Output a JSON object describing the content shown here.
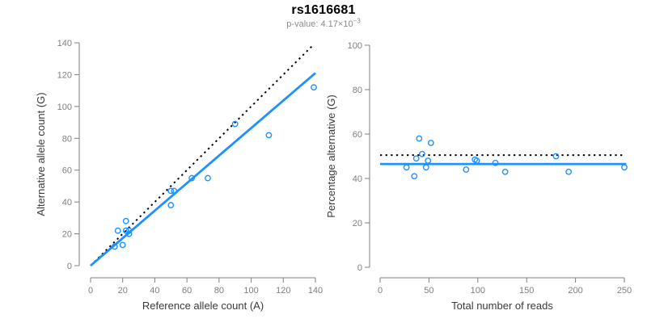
{
  "header": {
    "title": "rs1616681",
    "p_value": {
      "label": "p-value: 4.17×10",
      "exponent": "−3"
    }
  },
  "colors": {
    "points": "#1E90FF",
    "fit_line": "#1E90FF",
    "reference_line": "#000000",
    "axis": "#808080",
    "tick_label": "#7f7f7f",
    "axis_label": "#3a3a3a",
    "title": "#000000",
    "subtitle": "#8a8a8a",
    "background": "#ffffff"
  },
  "chart_data": [
    {
      "type": "scatter",
      "title": "",
      "xlabel": "Reference allele count (A)",
      "ylabel": "Alternative allele count (G)",
      "xlim": [
        0,
        140
      ],
      "ylim": [
        0,
        140
      ],
      "xticks": [
        0,
        20,
        40,
        60,
        80,
        100,
        120,
        140
      ],
      "yticks": [
        0,
        20,
        40,
        60,
        80,
        100,
        120,
        140
      ],
      "grid": false,
      "legend": "none",
      "points": [
        [
          15,
          12
        ],
        [
          17,
          22
        ],
        [
          20,
          13
        ],
        [
          22,
          28
        ],
        [
          22,
          22
        ],
        [
          24,
          22
        ],
        [
          24,
          20
        ],
        [
          50,
          38
        ],
        [
          50,
          47
        ],
        [
          52,
          47
        ],
        [
          63,
          55
        ],
        [
          73,
          55
        ],
        [
          90,
          89
        ],
        [
          111,
          82
        ],
        [
          139,
          112
        ]
      ],
      "lines": [
        {
          "name": "identity-line",
          "style": "dotted",
          "color": "#000000",
          "x": [
            0,
            138
          ],
          "y": [
            0,
            138
          ]
        },
        {
          "name": "regression-line",
          "style": "solid",
          "color": "#1E90FF",
          "x": [
            0,
            140
          ],
          "y": [
            0,
            121
          ]
        }
      ]
    },
    {
      "type": "scatter",
      "title": "",
      "xlabel": "Total number of reads",
      "ylabel": "Percentage alternative (G)",
      "xlim": [
        0,
        250
      ],
      "ylim": [
        0,
        100
      ],
      "xticks": [
        0,
        50,
        100,
        150,
        200,
        250
      ],
      "yticks": [
        0,
        20,
        40,
        60,
        80,
        100
      ],
      "grid": false,
      "legend": "none",
      "points": [
        [
          27,
          45
        ],
        [
          35,
          41
        ],
        [
          37,
          49
        ],
        [
          40,
          58
        ],
        [
          43,
          51
        ],
        [
          47,
          45
        ],
        [
          49,
          48
        ],
        [
          52,
          56
        ],
        [
          88,
          44
        ],
        [
          97,
          48.5
        ],
        [
          99,
          48
        ],
        [
          118,
          47
        ],
        [
          128,
          43
        ],
        [
          180,
          50
        ],
        [
          193,
          43
        ],
        [
          250,
          45
        ]
      ],
      "lines": [
        {
          "name": "expected-50pct-line",
          "style": "dotted",
          "color": "#000000",
          "x": [
            0,
            248
          ],
          "y": [
            50.5,
            50.5
          ]
        },
        {
          "name": "mean-percentage-line",
          "style": "solid",
          "color": "#1E90FF",
          "x": [
            0,
            252
          ],
          "y": [
            46.5,
            46.5
          ]
        }
      ]
    }
  ]
}
